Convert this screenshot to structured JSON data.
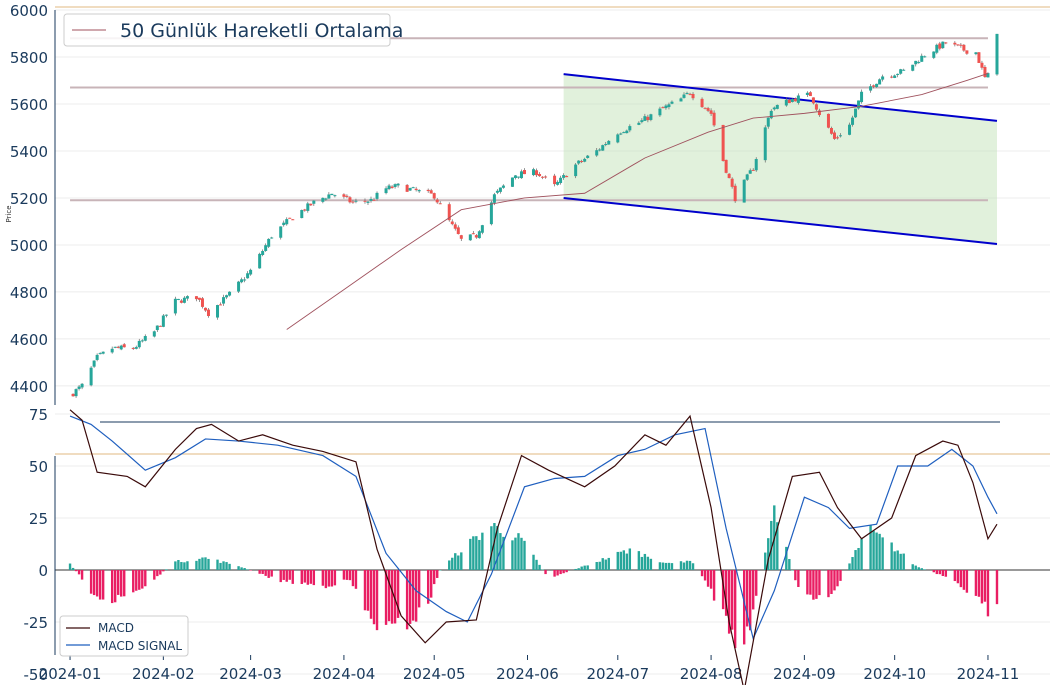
{
  "chart_data": [
    {
      "type": "candlestick",
      "ylabel": "Price",
      "legend": {
        "entries": [
          "50 Günlük Hareketli Ortalama"
        ],
        "placement": "top-left"
      },
      "ylim": [
        4340,
        6000
      ],
      "yticks": [
        4400,
        4600,
        4800,
        5000,
        5200,
        5400,
        5600,
        5800,
        6000
      ],
      "xlim": [
        "2023-12-27",
        "2024-11-05"
      ],
      "grid": "horizontal",
      "colors": {
        "up": "#26a69a",
        "down": "#ef5350",
        "ma": "#a0525e",
        "channel_line": "#0000cc",
        "channel_fill": "#c8e6c0",
        "support_resistance": "#c8b4b8",
        "top_border": "#e8c89a"
      },
      "horizontal_levels": [
        {
          "y": 5190,
          "x_start": "2024-01-01",
          "x_end": "2024-11-01"
        },
        {
          "y": 5670,
          "x_start": "2024-01-01",
          "x_end": "2024-11-01"
        },
        {
          "y": 5880,
          "x_start": "2024-01-01",
          "x_end": "2024-11-01"
        }
      ],
      "channel": {
        "start": "2024-06-13",
        "end": "2024-11-04",
        "upper": [
          5727,
          5528
        ],
        "lower": [
          5200,
          5004
        ]
      },
      "candle_anchors": {
        "dates": [
          "2024-01-02",
          "2024-01-05",
          "2024-01-10",
          "2024-01-15",
          "2024-01-22",
          "2024-01-29",
          "2024-02-05",
          "2024-02-12",
          "2024-02-16",
          "2024-02-23",
          "2024-03-01",
          "2024-03-08",
          "2024-03-15",
          "2024-03-22",
          "2024-03-28",
          "2024-04-04",
          "2024-04-10",
          "2024-04-15",
          "2024-04-19",
          "2024-04-25",
          "2024-05-01",
          "2024-05-06",
          "2024-05-10",
          "2024-05-15",
          "2024-05-21",
          "2024-05-28",
          "2024-06-04",
          "2024-06-10",
          "2024-06-17",
          "2024-06-24",
          "2024-07-01",
          "2024-07-08",
          "2024-07-16",
          "2024-07-22",
          "2024-07-25",
          "2024-08-01",
          "2024-08-05",
          "2024-08-09",
          "2024-08-15",
          "2024-08-21",
          "2024-08-28",
          "2024-09-03",
          "2024-09-06",
          "2024-09-11",
          "2024-09-16",
          "2024-09-20",
          "2024-09-27",
          "2024-10-04",
          "2024-10-11",
          "2024-10-18",
          "2024-10-24",
          "2024-10-28",
          "2024-10-31",
          "2024-11-01",
          "2024-11-04"
        ],
        "close": [
          4370,
          4400,
          4520,
          4560,
          4560,
          4630,
          4760,
          4780,
          4710,
          4790,
          4890,
          5040,
          5120,
          5180,
          5220,
          5180,
          5190,
          5240,
          5250,
          5230,
          5210,
          5100,
          5020,
          5040,
          5210,
          5300,
          5310,
          5250,
          5340,
          5400,
          5480,
          5520,
          5580,
          5620,
          5650,
          5560,
          5360,
          5200,
          5330,
          5580,
          5620,
          5640,
          5560,
          5450,
          5510,
          5640,
          5720,
          5740,
          5810,
          5860,
          5830,
          5820,
          5710,
          5720,
          5910
        ]
      },
      "ma50": {
        "dates": [
          "2024-03-13",
          "2024-04-01",
          "2024-04-20",
          "2024-05-10",
          "2024-05-31",
          "2024-06-20",
          "2024-07-10",
          "2024-07-31",
          "2024-08-15",
          "2024-09-01",
          "2024-09-20",
          "2024-10-10",
          "2024-10-25",
          "2024-11-01"
        ],
        "values": [
          4640,
          4810,
          4980,
          5150,
          5200,
          5220,
          5370,
          5480,
          5540,
          5560,
          5590,
          5640,
          5700,
          5730
        ]
      }
    },
    {
      "type": "macd",
      "ylim": [
        -60,
        80
      ],
      "yticks": [
        -50,
        -25,
        0,
        25,
        50,
        75
      ],
      "xticks": [
        "2024-01",
        "2024-02",
        "2024-03",
        "2024-04",
        "2024-05",
        "2024-06",
        "2024-07",
        "2024-08",
        "2024-09",
        "2024-10",
        "2024-11"
      ],
      "legend": {
        "placement": "bottom-left"
      },
      "colors": {
        "macd": "#3a0a0a",
        "signal": "#1f5fbf",
        "hist_pos": "#26a69a",
        "hist_neg": "#e91e63"
      },
      "series": [
        {
          "name": "MACD",
          "dates": [
            "2024-01-01",
            "2024-01-05",
            "2024-01-10",
            "2024-01-20",
            "2024-01-26",
            "2024-02-05",
            "2024-02-12",
            "2024-02-17",
            "2024-02-26",
            "2024-03-05",
            "2024-03-15",
            "2024-03-25",
            "2024-04-05",
            "2024-04-12",
            "2024-04-20",
            "2024-04-28",
            "2024-05-05",
            "2024-05-15",
            "2024-05-22",
            "2024-05-30",
            "2024-06-08",
            "2024-06-20",
            "2024-06-30",
            "2024-07-10",
            "2024-07-17",
            "2024-07-25",
            "2024-08-01",
            "2024-08-07",
            "2024-08-12",
            "2024-08-20",
            "2024-08-28",
            "2024-09-06",
            "2024-09-12",
            "2024-09-20",
            "2024-09-30",
            "2024-10-08",
            "2024-10-17",
            "2024-10-22",
            "2024-10-27",
            "2024-11-01",
            "2024-11-04"
          ],
          "values": [
            77,
            72,
            47,
            45,
            40,
            58,
            68,
            70,
            62,
            65,
            60,
            57,
            52,
            10,
            -22,
            -35,
            -25,
            -24,
            20,
            55,
            48,
            40,
            50,
            65,
            60,
            74,
            30,
            -25,
            -58,
            5,
            45,
            47,
            30,
            15,
            25,
            55,
            62,
            60,
            42,
            15,
            22
          ]
        },
        {
          "name": "MACD SIGNAL",
          "dates": [
            "2024-01-01",
            "2024-01-08",
            "2024-01-15",
            "2024-01-26",
            "2024-02-05",
            "2024-02-15",
            "2024-02-26",
            "2024-03-10",
            "2024-03-25",
            "2024-04-05",
            "2024-04-15",
            "2024-04-25",
            "2024-05-05",
            "2024-05-12",
            "2024-05-20",
            "2024-05-31",
            "2024-06-10",
            "2024-06-20",
            "2024-07-01",
            "2024-07-10",
            "2024-07-20",
            "2024-07-30",
            "2024-08-06",
            "2024-08-15",
            "2024-08-22",
            "2024-09-01",
            "2024-09-09",
            "2024-09-16",
            "2024-09-25",
            "2024-10-02",
            "2024-10-12",
            "2024-10-20",
            "2024-10-27",
            "2024-11-01",
            "2024-11-04"
          ],
          "values": [
            74,
            70,
            62,
            48,
            54,
            63,
            62,
            60,
            55,
            45,
            8,
            -10,
            -20,
            -25,
            -2,
            40,
            44,
            45,
            55,
            58,
            65,
            68,
            20,
            -33,
            -10,
            35,
            30,
            20,
            22,
            50,
            50,
            58,
            50,
            35,
            27
          ]
        }
      ],
      "histogram_anchors": {
        "dates": [
          "2024-01-01",
          "2024-01-08",
          "2024-01-15",
          "2024-01-26",
          "2024-02-05",
          "2024-02-15",
          "2024-02-26",
          "2024-03-10",
          "2024-03-25",
          "2024-04-03",
          "2024-04-10",
          "2024-04-17",
          "2024-04-28",
          "2024-05-03",
          "2024-05-10",
          "2024-05-20",
          "2024-05-30",
          "2024-06-08",
          "2024-06-20",
          "2024-07-05",
          "2024-07-18",
          "2024-07-25",
          "2024-08-01",
          "2024-08-07",
          "2024-08-12",
          "2024-08-18",
          "2024-08-22",
          "2024-08-30",
          "2024-09-06",
          "2024-09-12",
          "2024-09-22",
          "2024-09-30",
          "2024-10-08",
          "2024-10-17",
          "2024-10-25",
          "2024-11-01",
          "2024-11-04"
        ],
        "values": [
          3,
          -10,
          -16,
          -8,
          4,
          6,
          2,
          -5,
          -8,
          -5,
          -25,
          -30,
          -20,
          0,
          10,
          22,
          15,
          -4,
          2,
          10,
          3,
          5,
          -10,
          -28,
          -40,
          0,
          30,
          -10,
          -15,
          -8,
          20,
          12,
          2,
          -3,
          -10,
          -20,
          -15
        ]
      }
    }
  ]
}
